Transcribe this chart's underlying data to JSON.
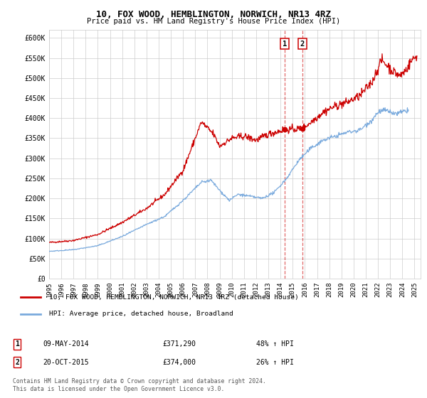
{
  "title": "10, FOX WOOD, HEMBLINGTON, NORWICH, NR13 4RZ",
  "subtitle": "Price paid vs. HM Land Registry's House Price Index (HPI)",
  "yticks": [
    0,
    50000,
    100000,
    150000,
    200000,
    250000,
    300000,
    350000,
    400000,
    450000,
    500000,
    550000,
    600000
  ],
  "ytick_labels": [
    "£0",
    "£50K",
    "£100K",
    "£150K",
    "£200K",
    "£250K",
    "£300K",
    "£350K",
    "£400K",
    "£450K",
    "£500K",
    "£550K",
    "£600K"
  ],
  "xmin": 1995.0,
  "xmax": 2025.5,
  "ymin": 0,
  "ymax": 620000,
  "legend_line1": "10, FOX WOOD, HEMBLINGTON, NORWICH, NR13 4RZ (detached house)",
  "legend_line2": "HPI: Average price, detached house, Broadland",
  "sale1_date": "09-MAY-2014",
  "sale1_price": "£371,290",
  "sale1_hpi": "48% ↑ HPI",
  "sale1_x": 2014.35,
  "sale1_y": 371290,
  "sale2_date": "20-OCT-2015",
  "sale2_price": "£374,000",
  "sale2_hpi": "26% ↑ HPI",
  "sale2_x": 2015.8,
  "sale2_y": 374000,
  "red_color": "#cc0000",
  "blue_color": "#7aaadd",
  "copyright_text": "Contains HM Land Registry data © Crown copyright and database right 2024.\nThis data is licensed under the Open Government Licence v3.0.",
  "background_color": "#ffffff",
  "grid_color": "#cccccc"
}
